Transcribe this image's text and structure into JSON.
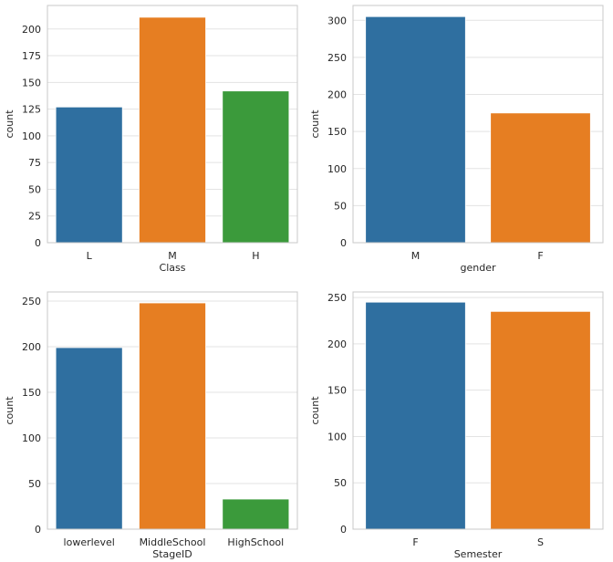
{
  "chart_data": [
    {
      "type": "bar",
      "categories": [
        "L",
        "M",
        "H"
      ],
      "values": [
        127,
        211,
        142
      ],
      "colors": [
        "#2f6fa0",
        "#e67e22",
        "#3b9a3b"
      ],
      "title": "",
      "xlabel": "Class",
      "ylabel": "count",
      "ylim": [
        0,
        222
      ],
      "yticks": [
        0,
        25,
        50,
        75,
        100,
        125,
        150,
        175,
        200
      ],
      "grid": true
    },
    {
      "type": "bar",
      "categories": [
        "M",
        "F"
      ],
      "values": [
        305,
        175
      ],
      "colors": [
        "#2f6fa0",
        "#e67e22"
      ],
      "title": "",
      "xlabel": "gender",
      "ylabel": "count",
      "ylim": [
        0,
        320
      ],
      "yticks": [
        0,
        50,
        100,
        150,
        200,
        250,
        300
      ],
      "grid": true
    },
    {
      "type": "bar",
      "categories": [
        "lowerlevel",
        "MiddleSchool",
        "HighSchool"
      ],
      "values": [
        199,
        248,
        33
      ],
      "colors": [
        "#2f6fa0",
        "#e67e22",
        "#3b9a3b"
      ],
      "title": "",
      "xlabel": "StageID",
      "ylabel": "count",
      "ylim": [
        0,
        260
      ],
      "yticks": [
        0,
        50,
        100,
        150,
        200,
        250
      ],
      "grid": true
    },
    {
      "type": "bar",
      "categories": [
        "F",
        "S"
      ],
      "values": [
        245,
        235
      ],
      "colors": [
        "#2f6fa0",
        "#e67e22"
      ],
      "title": "",
      "xlabel": "Semester",
      "ylabel": "count",
      "ylim": [
        0,
        256
      ],
      "yticks": [
        0,
        50,
        100,
        150,
        200,
        250
      ],
      "grid": true
    }
  ]
}
